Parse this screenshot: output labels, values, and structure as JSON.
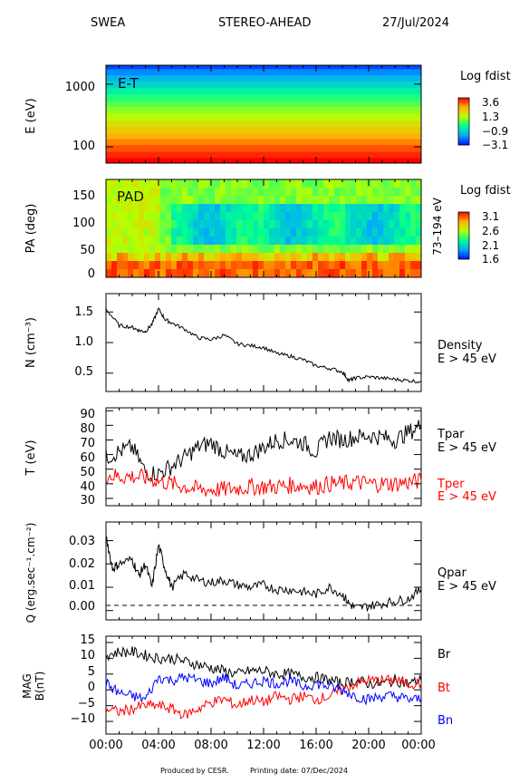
{
  "header": {
    "instrument": "SWEA",
    "spacecraft": "STEREO-AHEAD",
    "date": "27/Jul/2024"
  },
  "footer": {
    "produced_by": "Produced by CESR.",
    "printing": "Printing date: 07/Dec/2024"
  },
  "x_axis": {
    "ticks": [
      "00:00",
      "04:00",
      "08:00",
      "12:00",
      "16:00",
      "20:00",
      "00:00"
    ],
    "range_hours": [
      0,
      24
    ]
  },
  "colors": {
    "black": "#000000",
    "red": "#ff0000",
    "blue": "#0000ff"
  },
  "chart_data": [
    {
      "type": "heatmap",
      "id": "energy-time",
      "inset_label": "E-T",
      "ylabel": "E (eV)",
      "yscale": "log",
      "yticks": [
        "1000",
        "100"
      ],
      "ytick_values": [
        1000,
        100
      ],
      "ylim": [
        55,
        2000
      ],
      "colorbar": {
        "title": "Log fdist",
        "ticks": [
          "3.6",
          "1.3",
          "−0.9",
          "−3.1"
        ],
        "range": [
          -3.1,
          3.6
        ]
      },
      "energy_bands_ev": [
        60,
        75,
        95,
        120,
        150,
        190,
        240,
        300,
        380,
        480,
        600,
        760,
        960,
        1210,
        1530,
        1930
      ],
      "band_log_fdist": [
        3.6,
        3.3,
        3.0,
        2.6,
        2.2,
        1.8,
        1.4,
        1.0,
        0.6,
        0.2,
        -0.2,
        -0.6,
        -1.0,
        -1.5,
        -2.0,
        -2.6
      ]
    },
    {
      "type": "heatmap",
      "id": "pitch-angle",
      "inset_label": "PAD",
      "ylabel": "PA (deg)",
      "yticks": [
        "150",
        "100",
        "50",
        "0"
      ],
      "ytick_values": [
        150,
        100,
        50,
        0
      ],
      "ylim": [
        0,
        180
      ],
      "energy_range": "73–194 eV",
      "colorbar": {
        "title": "Log fdist",
        "ticks": [
          "3.1",
          "2.6",
          "2.1",
          "1.6"
        ],
        "range": [
          1.6,
          3.1
        ]
      }
    },
    {
      "type": "line",
      "id": "density",
      "ylabel": "N (cm⁻³)",
      "yticks": [
        "1.5",
        "1.0",
        "0.5"
      ],
      "ytick_values": [
        1.5,
        1.0,
        0.5
      ],
      "ylim": [
        0.2,
        1.8
      ],
      "series": [
        {
          "name": "Density",
          "label2": "E > 45 eV",
          "color": "#000000",
          "x": [
            0,
            1,
            2,
            2.5,
            3,
            3.5,
            4,
            4.5,
            5,
            6,
            7,
            8,
            9,
            10,
            11,
            12,
            13,
            14,
            15,
            16,
            17,
            18,
            18.5,
            19,
            20,
            21,
            22,
            23,
            24
          ],
          "y": [
            1.55,
            1.28,
            1.25,
            1.2,
            1.18,
            1.3,
            1.55,
            1.38,
            1.32,
            1.22,
            1.08,
            1.05,
            1.12,
            0.98,
            0.95,
            0.92,
            0.82,
            0.78,
            0.72,
            0.62,
            0.58,
            0.52,
            0.38,
            0.42,
            0.44,
            0.42,
            0.4,
            0.38,
            0.36
          ]
        }
      ]
    },
    {
      "type": "line",
      "id": "temperature",
      "ylabel": "T (eV)",
      "yticks": [
        "90",
        "80",
        "70",
        "60",
        "50",
        "40",
        "30"
      ],
      "ytick_values": [
        90,
        80,
        70,
        60,
        50,
        40,
        30
      ],
      "ylim": [
        25,
        92
      ],
      "series": [
        {
          "name": "Tpar",
          "label2": "E > 45 eV",
          "color": "#000000",
          "x": [
            0,
            1,
            2,
            3,
            4,
            5,
            6,
            7,
            8,
            9,
            10,
            11,
            12,
            13,
            14,
            15,
            16,
            17,
            18,
            19,
            20,
            21,
            22,
            23,
            24
          ],
          "y": [
            58,
            62,
            65,
            48,
            47,
            52,
            58,
            65,
            68,
            62,
            58,
            60,
            65,
            70,
            70,
            68,
            62,
            72,
            70,
            72,
            73,
            72,
            70,
            75,
            80
          ]
        },
        {
          "name": "Tper",
          "label2": "E > 45 eV",
          "color": "#ff0000",
          "x": [
            0,
            1,
            2,
            3,
            4,
            5,
            6,
            7,
            8,
            9,
            10,
            11,
            12,
            13,
            14,
            15,
            16,
            17,
            18,
            19,
            20,
            21,
            22,
            23,
            24
          ],
          "y": [
            46,
            45,
            45,
            44,
            42,
            40,
            38,
            36,
            36,
            36,
            37,
            38,
            38,
            38,
            39,
            39,
            38,
            40,
            40,
            41,
            40,
            40,
            40,
            41,
            42
          ]
        }
      ]
    },
    {
      "type": "line",
      "id": "heat-flux",
      "ylabel": "Q (erg.sec⁻¹.cm⁻²)",
      "yticks": [
        "0.03",
        "0.02",
        "0.01",
        "0.00"
      ],
      "ytick_values": [
        0.03,
        0.02,
        0.01,
        0.0
      ],
      "ylim": [
        -0.004,
        0.038
      ],
      "series": [
        {
          "name": "Qpar",
          "label2": "E > 45 eV",
          "color": "#000000",
          "x": [
            0,
            0.5,
            1,
            2,
            2.5,
            3,
            3.5,
            4,
            4.5,
            5,
            6,
            7,
            8,
            9,
            10,
            11,
            12,
            13,
            14,
            15,
            16,
            17,
            18,
            18.5,
            19,
            20,
            21,
            22,
            23,
            24
          ],
          "y": [
            0.032,
            0.018,
            0.02,
            0.022,
            0.015,
            0.02,
            0.01,
            0.028,
            0.018,
            0.01,
            0.016,
            0.013,
            0.012,
            0.013,
            0.011,
            0.01,
            0.011,
            0.009,
            0.009,
            0.008,
            0.007,
            0.01,
            0.007,
            0.003,
            0.001,
            0.002,
            0.003,
            0.004,
            0.005,
            0.009
          ]
        }
      ]
    },
    {
      "type": "line",
      "id": "magnetic-field",
      "ylabel": "MAG",
      "ylabel2": "B(nT)",
      "yticks": [
        "15",
        "10",
        "5",
        "0",
        "−5",
        "−10"
      ],
      "ytick_values": [
        15,
        10,
        5,
        0,
        -5,
        -10
      ],
      "ylim": [
        -14,
        17
      ],
      "series": [
        {
          "name": "Br",
          "color": "#000000",
          "x": [
            0,
            1,
            2,
            3,
            4,
            5,
            6,
            7,
            8,
            9,
            10,
            11,
            12,
            13,
            14,
            15,
            16,
            17,
            18,
            19,
            20,
            21,
            22,
            23,
            24
          ],
          "y": [
            11,
            12,
            12,
            11,
            10,
            10,
            9,
            8,
            7,
            6,
            5,
            6,
            6,
            5,
            5,
            4,
            4,
            3,
            2,
            3,
            2,
            2,
            3,
            2,
            3
          ]
        },
        {
          "name": "Bt",
          "color": "#ff0000",
          "x": [
            0,
            1,
            2,
            3,
            4,
            5,
            6,
            7,
            8,
            9,
            10,
            11,
            12,
            13,
            14,
            15,
            16,
            17,
            18,
            19,
            20,
            21,
            22,
            23,
            24
          ],
          "y": [
            -6,
            -7,
            -6,
            -5,
            -5,
            -6,
            -8,
            -6,
            -4,
            -3,
            -5,
            -3,
            -4,
            -2,
            -3,
            -2,
            -3,
            -2,
            0,
            2,
            3,
            3,
            3,
            2,
            2
          ]
        },
        {
          "name": "Bn",
          "color": "#0000ff",
          "x": [
            0,
            1,
            2,
            3,
            4,
            5,
            6,
            7,
            8,
            9,
            10,
            11,
            12,
            13,
            14,
            15,
            16,
            17,
            18,
            19,
            20,
            21,
            22,
            23,
            24
          ],
          "y": [
            2,
            -1,
            -2,
            -3,
            4,
            3,
            4,
            3,
            2,
            4,
            1,
            2,
            3,
            2,
            3,
            1,
            2,
            1,
            0,
            -2,
            -3,
            -2,
            -2,
            -3,
            -3
          ]
        }
      ]
    }
  ]
}
